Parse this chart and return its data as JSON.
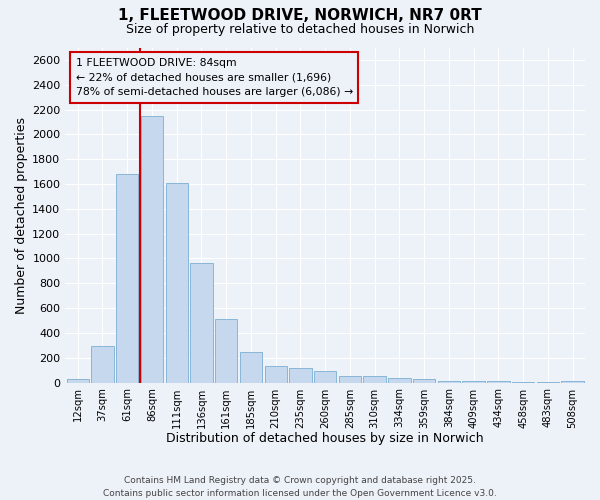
{
  "title": "1, FLEETWOOD DRIVE, NORWICH, NR7 0RT",
  "subtitle": "Size of property relative to detached houses in Norwich",
  "xlabel": "Distribution of detached houses by size in Norwich",
  "ylabel": "Number of detached properties",
  "categories": [
    "12sqm",
    "37sqm",
    "61sqm",
    "86sqm",
    "111sqm",
    "136sqm",
    "161sqm",
    "185sqm",
    "210sqm",
    "235sqm",
    "260sqm",
    "285sqm",
    "310sqm",
    "334sqm",
    "359sqm",
    "384sqm",
    "409sqm",
    "434sqm",
    "458sqm",
    "483sqm",
    "508sqm"
  ],
  "values": [
    25,
    295,
    1680,
    2150,
    1610,
    960,
    510,
    245,
    130,
    120,
    95,
    55,
    55,
    35,
    25,
    10,
    10,
    10,
    8,
    5,
    10
  ],
  "bar_color": "#c5d8ee",
  "bar_edge_color": "#7bafd4",
  "background_color": "#edf1f8",
  "grid_color": "#ffffff",
  "vline_color": "#cc0000",
  "vline_pos": 2.5,
  "annotation_text": "1 FLEETWOOD DRIVE: 84sqm\n← 22% of detached houses are smaller (1,696)\n78% of semi-detached houses are larger (6,086) →",
  "annotation_box_color": "#cc0000",
  "footer_text": "Contains HM Land Registry data © Crown copyright and database right 2025.\nContains public sector information licensed under the Open Government Licence v3.0.",
  "ylim": [
    0,
    2700
  ],
  "yticks": [
    0,
    200,
    400,
    600,
    800,
    1000,
    1200,
    1400,
    1600,
    1800,
    2000,
    2200,
    2400,
    2600
  ]
}
